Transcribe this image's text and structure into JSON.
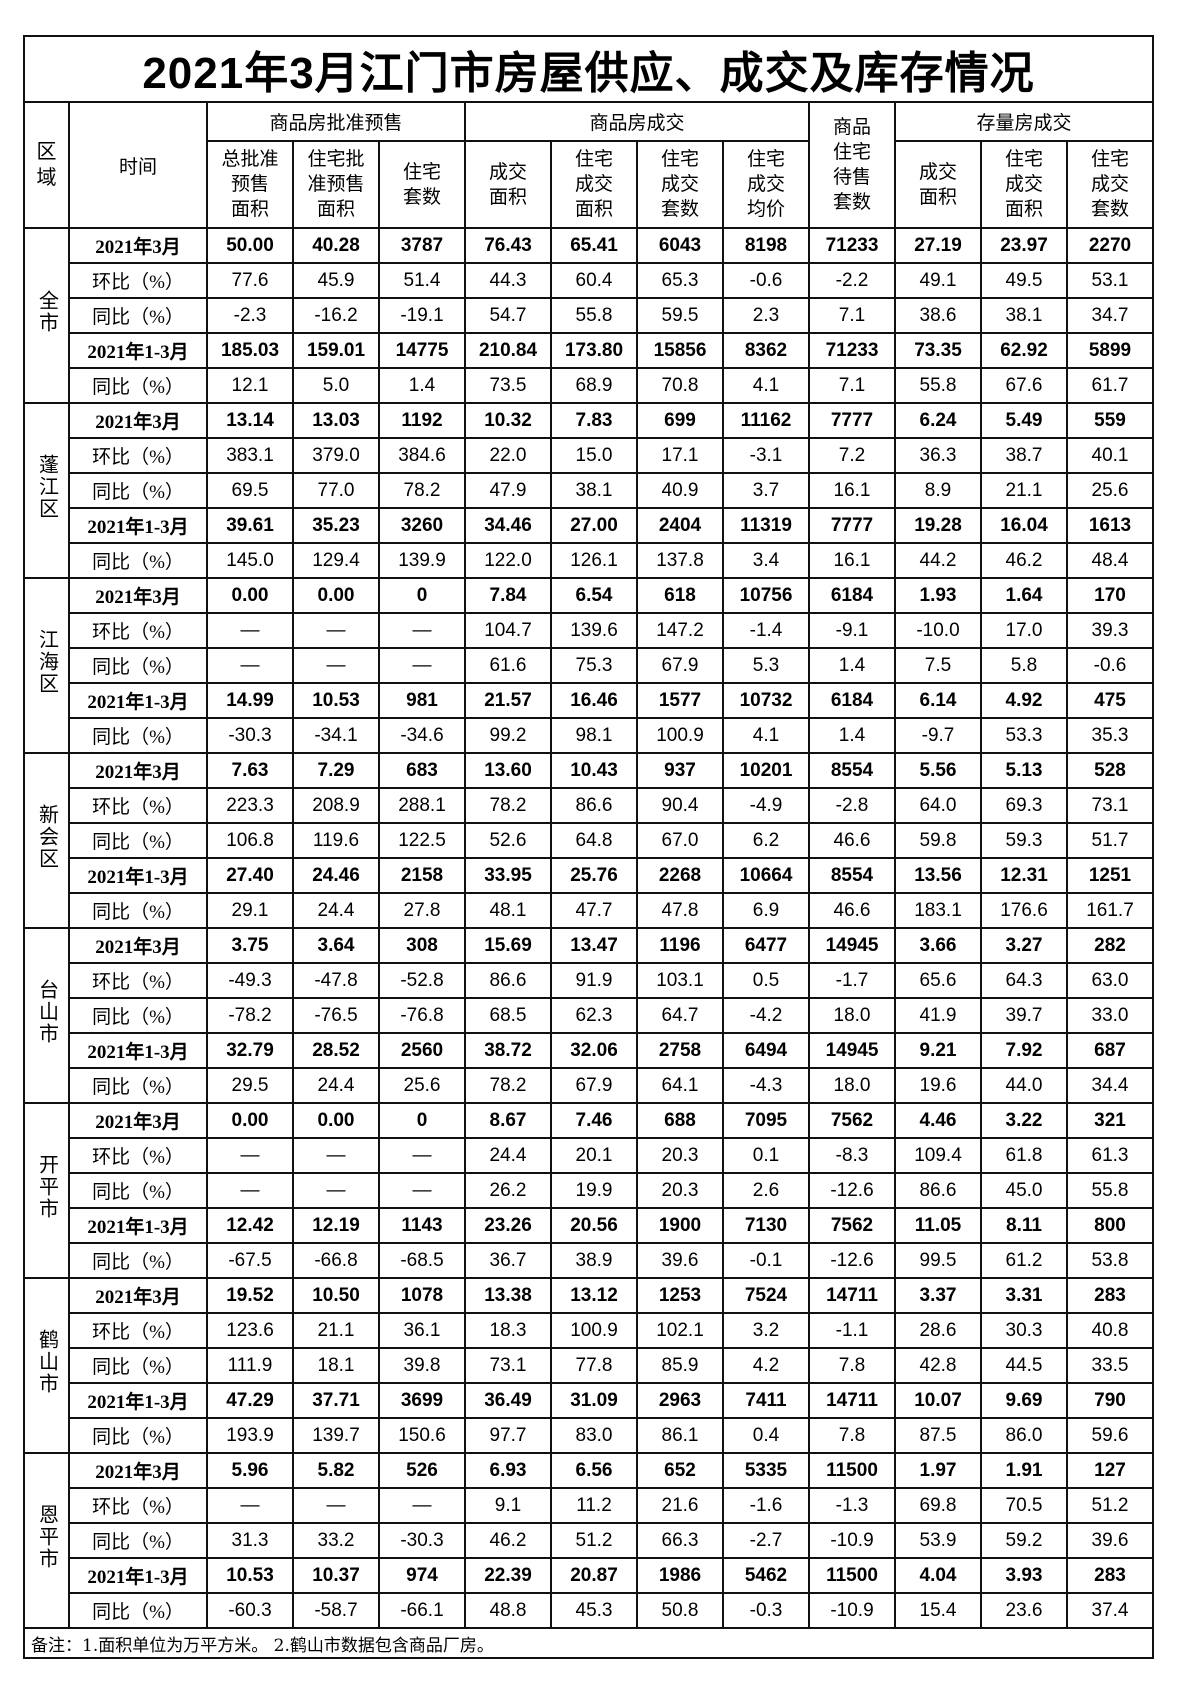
{
  "title": "2021年3月江门市房屋供应、成交及库存情况",
  "headers": {
    "region": [
      "区",
      "域"
    ],
    "time": "时间",
    "group_presale": "商品房批准预售",
    "group_deal": "商品房成交",
    "group_inventory": [
      "商品",
      "住宅",
      "待售",
      "套数"
    ],
    "group_stock": "存量房成交",
    "presale_cols": [
      [
        "总批准",
        "预售",
        "面积"
      ],
      [
        "住宅批",
        "准预售",
        "面积"
      ],
      [
        "住宅",
        "套数"
      ]
    ],
    "deal_cols": [
      [
        "成交",
        "面积"
      ],
      [
        "住宅",
        "成交",
        "面积"
      ],
      [
        "住宅",
        "成交",
        "套数"
      ],
      [
        "住宅",
        "成交",
        "均价"
      ]
    ],
    "stock_cols": [
      [
        "成交",
        "面积"
      ],
      [
        "住宅",
        "成交",
        "面积"
      ],
      [
        "住宅",
        "成交",
        "套数"
      ]
    ]
  },
  "row_labels": [
    "2021年3月",
    "环比（%）",
    "同比（%）",
    "2021年1-3月",
    "同比（%）"
  ],
  "regions": [
    {
      "name": "全市",
      "rows": [
        [
          "50.00",
          "40.28",
          "3787",
          "76.43",
          "65.41",
          "6043",
          "8198",
          "71233",
          "27.19",
          "23.97",
          "2270"
        ],
        [
          "77.6",
          "45.9",
          "51.4",
          "44.3",
          "60.4",
          "65.3",
          "-0.6",
          "-2.2",
          "49.1",
          "49.5",
          "53.1"
        ],
        [
          "-2.3",
          "-16.2",
          "-19.1",
          "54.7",
          "55.8",
          "59.5",
          "2.3",
          "7.1",
          "38.6",
          "38.1",
          "34.7"
        ],
        [
          "185.03",
          "159.01",
          "14775",
          "210.84",
          "173.80",
          "15856",
          "8362",
          "71233",
          "73.35",
          "62.92",
          "5899"
        ],
        [
          "12.1",
          "5.0",
          "1.4",
          "73.5",
          "68.9",
          "70.8",
          "4.1",
          "7.1",
          "55.8",
          "67.6",
          "61.7"
        ]
      ]
    },
    {
      "name": "蓬江区",
      "rows": [
        [
          "13.14",
          "13.03",
          "1192",
          "10.32",
          "7.83",
          "699",
          "11162",
          "7777",
          "6.24",
          "5.49",
          "559"
        ],
        [
          "383.1",
          "379.0",
          "384.6",
          "22.0",
          "15.0",
          "17.1",
          "-3.1",
          "7.2",
          "36.3",
          "38.7",
          "40.1"
        ],
        [
          "69.5",
          "77.0",
          "78.2",
          "47.9",
          "38.1",
          "40.9",
          "3.7",
          "16.1",
          "8.9",
          "21.1",
          "25.6"
        ],
        [
          "39.61",
          "35.23",
          "3260",
          "34.46",
          "27.00",
          "2404",
          "11319",
          "7777",
          "19.28",
          "16.04",
          "1613"
        ],
        [
          "145.0",
          "129.4",
          "139.9",
          "122.0",
          "126.1",
          "137.8",
          "3.4",
          "16.1",
          "44.2",
          "46.2",
          "48.4"
        ]
      ]
    },
    {
      "name": "江海区",
      "rows": [
        [
          "0.00",
          "0.00",
          "0",
          "7.84",
          "6.54",
          "618",
          "10756",
          "6184",
          "1.93",
          "1.64",
          "170"
        ],
        [
          "—",
          "—",
          "—",
          "104.7",
          "139.6",
          "147.2",
          "-1.4",
          "-9.1",
          "-10.0",
          "17.0",
          "39.3"
        ],
        [
          "—",
          "—",
          "—",
          "61.6",
          "75.3",
          "67.9",
          "5.3",
          "1.4",
          "7.5",
          "5.8",
          "-0.6"
        ],
        [
          "14.99",
          "10.53",
          "981",
          "21.57",
          "16.46",
          "1577",
          "10732",
          "6184",
          "6.14",
          "4.92",
          "475"
        ],
        [
          "-30.3",
          "-34.1",
          "-34.6",
          "99.2",
          "98.1",
          "100.9",
          "4.1",
          "1.4",
          "-9.7",
          "53.3",
          "35.3"
        ]
      ]
    },
    {
      "name": "新会区",
      "rows": [
        [
          "7.63",
          "7.29",
          "683",
          "13.60",
          "10.43",
          "937",
          "10201",
          "8554",
          "5.56",
          "5.13",
          "528"
        ],
        [
          "223.3",
          "208.9",
          "288.1",
          "78.2",
          "86.6",
          "90.4",
          "-4.9",
          "-2.8",
          "64.0",
          "69.3",
          "73.1"
        ],
        [
          "106.8",
          "119.6",
          "122.5",
          "52.6",
          "64.8",
          "67.0",
          "6.2",
          "46.6",
          "59.8",
          "59.3",
          "51.7"
        ],
        [
          "27.40",
          "24.46",
          "2158",
          "33.95",
          "25.76",
          "2268",
          "10664",
          "8554",
          "13.56",
          "12.31",
          "1251"
        ],
        [
          "29.1",
          "24.4",
          "27.8",
          "48.1",
          "47.7",
          "47.8",
          "6.9",
          "46.6",
          "183.1",
          "176.6",
          "161.7"
        ]
      ]
    },
    {
      "name": "台山市",
      "rows": [
        [
          "3.75",
          "3.64",
          "308",
          "15.69",
          "13.47",
          "1196",
          "6477",
          "14945",
          "3.66",
          "3.27",
          "282"
        ],
        [
          "-49.3",
          "-47.8",
          "-52.8",
          "86.6",
          "91.9",
          "103.1",
          "0.5",
          "-1.7",
          "65.6",
          "64.3",
          "63.0"
        ],
        [
          "-78.2",
          "-76.5",
          "-76.8",
          "68.5",
          "62.3",
          "64.7",
          "-4.2",
          "18.0",
          "41.9",
          "39.7",
          "33.0"
        ],
        [
          "32.79",
          "28.52",
          "2560",
          "38.72",
          "32.06",
          "2758",
          "6494",
          "14945",
          "9.21",
          "7.92",
          "687"
        ],
        [
          "29.5",
          "24.4",
          "25.6",
          "78.2",
          "67.9",
          "64.1",
          "-4.3",
          "18.0",
          "19.6",
          "44.0",
          "34.4"
        ]
      ]
    },
    {
      "name": "开平市",
      "rows": [
        [
          "0.00",
          "0.00",
          "0",
          "8.67",
          "7.46",
          "688",
          "7095",
          "7562",
          "4.46",
          "3.22",
          "321"
        ],
        [
          "—",
          "—",
          "—",
          "24.4",
          "20.1",
          "20.3",
          "0.1",
          "-8.3",
          "109.4",
          "61.8",
          "61.3"
        ],
        [
          "—",
          "—",
          "—",
          "26.2",
          "19.9",
          "20.3",
          "2.6",
          "-12.6",
          "86.6",
          "45.0",
          "55.8"
        ],
        [
          "12.42",
          "12.19",
          "1143",
          "23.26",
          "20.56",
          "1900",
          "7130",
          "7562",
          "11.05",
          "8.11",
          "800"
        ],
        [
          "-67.5",
          "-66.8",
          "-68.5",
          "36.7",
          "38.9",
          "39.6",
          "-0.1",
          "-12.6",
          "99.5",
          "61.2",
          "53.8"
        ]
      ]
    },
    {
      "name": "鹤山市",
      "rows": [
        [
          "19.52",
          "10.50",
          "1078",
          "13.38",
          "13.12",
          "1253",
          "7524",
          "14711",
          "3.37",
          "3.31",
          "283"
        ],
        [
          "123.6",
          "21.1",
          "36.1",
          "18.3",
          "100.9",
          "102.1",
          "3.2",
          "-1.1",
          "28.6",
          "30.3",
          "40.8"
        ],
        [
          "111.9",
          "18.1",
          "39.8",
          "73.1",
          "77.8",
          "85.9",
          "4.2",
          "7.8",
          "42.8",
          "44.5",
          "33.5"
        ],
        [
          "47.29",
          "37.71",
          "3699",
          "36.49",
          "31.09",
          "2963",
          "7411",
          "14711",
          "10.07",
          "9.69",
          "790"
        ],
        [
          "193.9",
          "139.7",
          "150.6",
          "97.7",
          "83.0",
          "86.1",
          "0.4",
          "7.8",
          "87.5",
          "86.0",
          "59.6"
        ]
      ]
    },
    {
      "name": "恩平市",
      "rows": [
        [
          "5.96",
          "5.82",
          "526",
          "6.93",
          "6.56",
          "652",
          "5335",
          "11500",
          "1.97",
          "1.91",
          "127"
        ],
        [
          "—",
          "—",
          "—",
          "9.1",
          "11.2",
          "21.6",
          "-1.6",
          "-1.3",
          "69.8",
          "70.5",
          "51.2"
        ],
        [
          "31.3",
          "33.2",
          "-30.3",
          "46.2",
          "51.2",
          "66.3",
          "-2.7",
          "-10.9",
          "53.9",
          "59.2",
          "39.6"
        ],
        [
          "10.53",
          "10.37",
          "974",
          "22.39",
          "20.87",
          "1986",
          "5462",
          "11500",
          "4.04",
          "3.93",
          "283"
        ],
        [
          "-60.3",
          "-58.7",
          "-66.1",
          "48.8",
          "45.3",
          "50.8",
          "-0.3",
          "-10.9",
          "15.4",
          "23.6",
          "37.4"
        ]
      ]
    }
  ],
  "note": "备注：1.面积单位为万平方米。 2.鹤山市数据包含商品厂房。"
}
